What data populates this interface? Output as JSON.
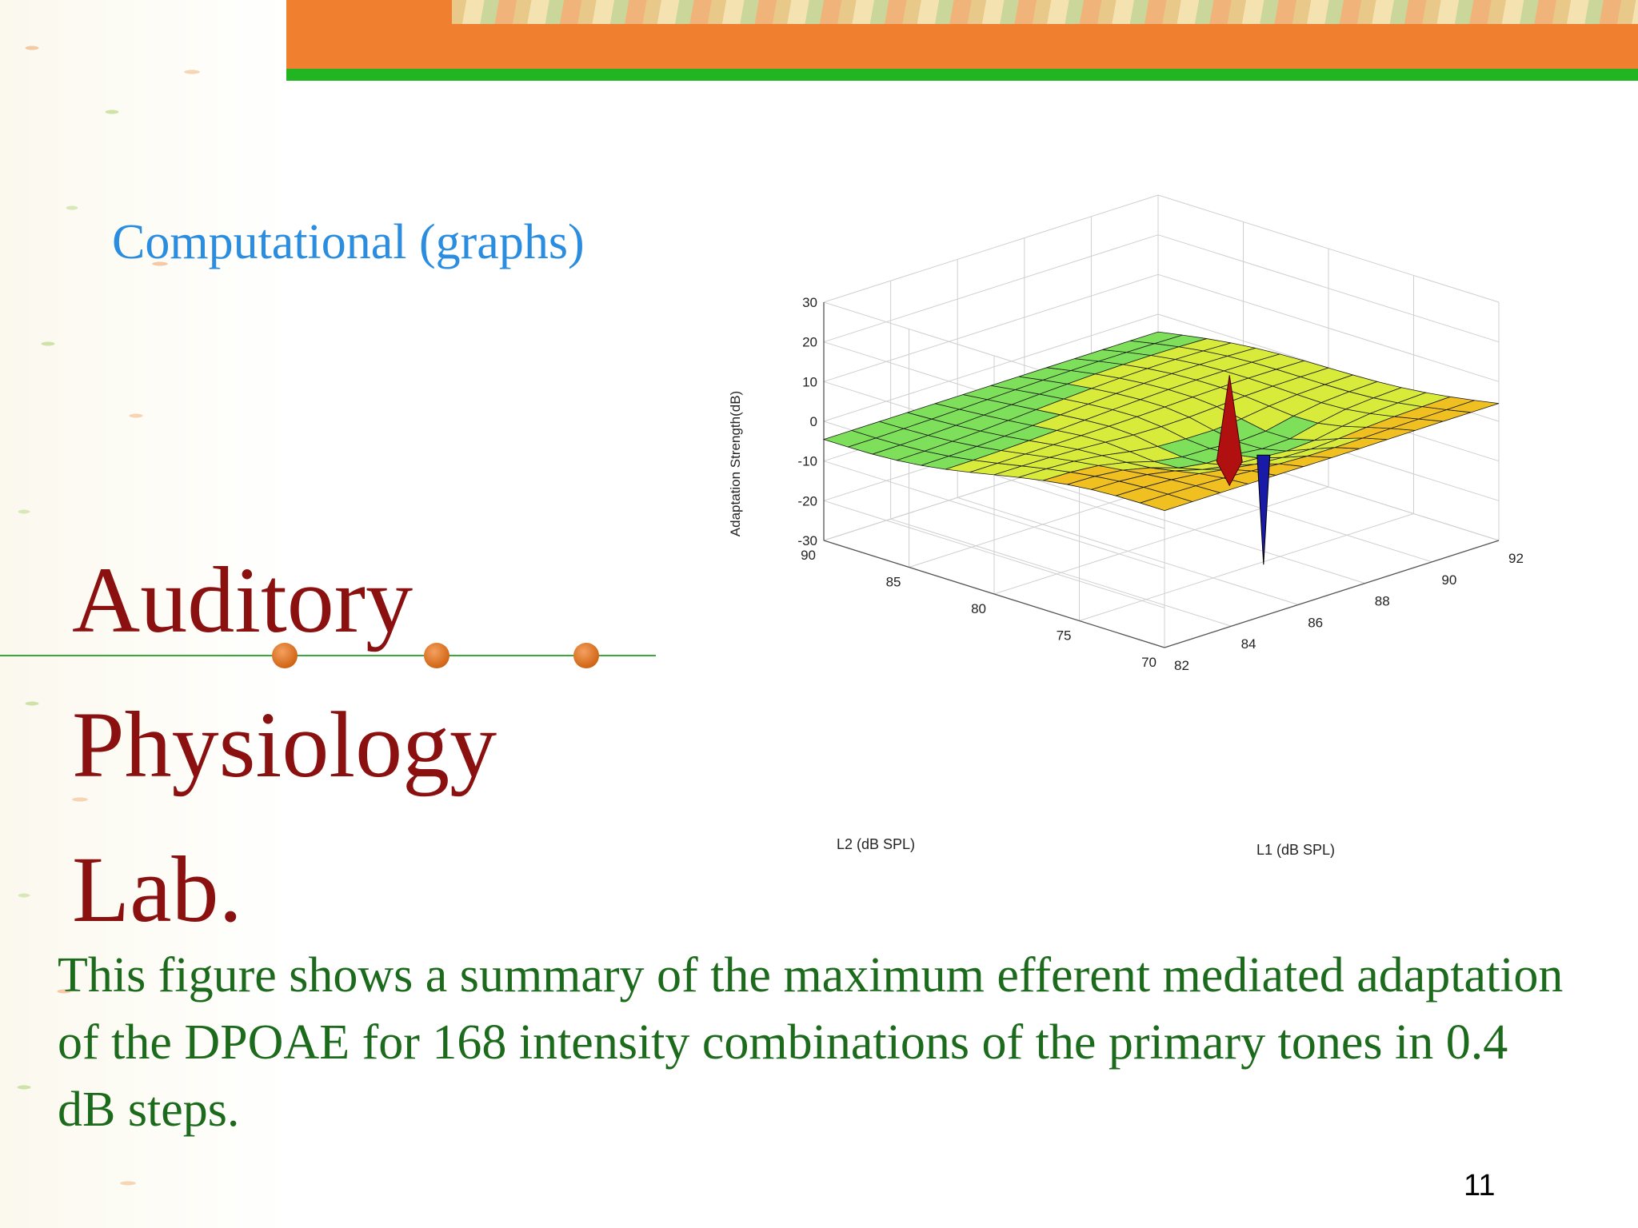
{
  "slide": {
    "subtitle": "Computational (graphs)",
    "lab_title_lines": [
      "Auditory",
      "Physiology",
      "Lab."
    ],
    "caption": "This figure shows a summary of the maximum efferent mediated adaptation of the DPOAE for 168 intensity combinations of the primary tones in 0.4 dB steps.",
    "page_number": "11"
  },
  "chart_data": {
    "type": "surface3d",
    "zlabel": "Adaptation Strength(dB)",
    "xlabel": "L2 (dB SPL)",
    "ylabel": "L1 (dB SPL)",
    "z_ticks": [
      "30",
      "20",
      "10",
      "0",
      "-10",
      "-20",
      "-30"
    ],
    "x_ticks": [
      "90",
      "85",
      "80",
      "75",
      "70"
    ],
    "y_ticks": [
      "82",
      "84",
      "86",
      "88",
      "90",
      "92"
    ],
    "zlim": [
      -30,
      30
    ],
    "xlim": [
      70,
      90
    ],
    "ylim": [
      82,
      92
    ],
    "grid": true,
    "summary": {
      "baseline_db": 0,
      "peak": {
        "L2": 76,
        "L1": 87,
        "value_db": 17
      },
      "trough": {
        "L2": 74,
        "L1": 87,
        "value_db": -28
      }
    },
    "colors": [
      "#1a1aa8",
      "#22c8f0",
      "#7ee05a",
      "#d8ea3a",
      "#f0c020",
      "#e87020",
      "#b01010"
    ]
  }
}
